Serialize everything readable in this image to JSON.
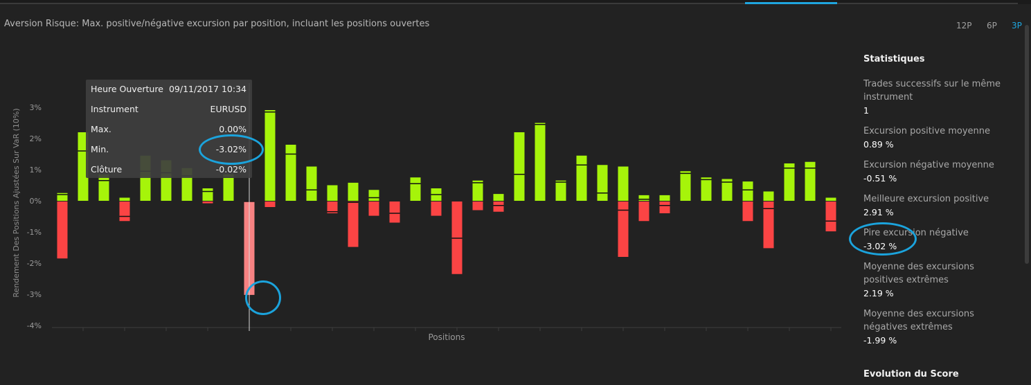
{
  "title": "Aversion Risque: Max. positive/négative excursion par position, incluant les positions ouvertes",
  "periods": [
    "12P",
    "6P",
    "3P"
  ],
  "active_period": "3P",
  "colors": {
    "positive": "#a6f40a",
    "negative": "#fb4444",
    "highlight": "#f78282",
    "accent": "#1fa6df"
  },
  "tooltip": {
    "rows": [
      {
        "label": "Heure Ouverture",
        "value": "09/11/2017 10:34"
      },
      {
        "label": "Instrument",
        "value": "EURUSD"
      },
      {
        "label": "Max.",
        "value": "0.00%"
      },
      {
        "label": "Min.",
        "value": "-3.02%"
      },
      {
        "label": "Clôture",
        "value": "-0.02%"
      }
    ]
  },
  "stats": {
    "title": "Statistiques",
    "items": [
      {
        "label": "Trades successifs sur le même instrument",
        "value": "1"
      },
      {
        "label": "Excursion positive moyenne",
        "value": "0.89 %"
      },
      {
        "label": "Excursion négative moyenne",
        "value": "-0.51 %"
      },
      {
        "label": "Meilleure excursion positive",
        "value": "2.91 %"
      },
      {
        "label": "Pire excursion négative",
        "value": "-3.02 %"
      },
      {
        "label": "Moyenne des excursions positives extrêmes",
        "value": "2.19 %"
      },
      {
        "label": "Moyenne des excursions négatives extrêmes",
        "value": "-1.99 %"
      }
    ],
    "score_title": "Evolution du Score"
  },
  "chart_data": {
    "type": "bar",
    "ylabel": "Rendement Des Positions Ajustées Sur VaR (10%)",
    "xlabel": "Positions",
    "ylim": [
      -4,
      3
    ],
    "yticks": [
      "3%",
      "2%",
      "1%",
      "0%",
      "-1%",
      "-2%",
      "-3%",
      "-4%"
    ],
    "highlighted_index": 9,
    "positions": [
      {
        "max": 0.25,
        "min": -1.85,
        "close": 0.2
      },
      {
        "max": 2.2,
        "min": 0.0,
        "close": 1.6
      },
      {
        "max": 0.85,
        "min": 0.0,
        "close": 0.65
      },
      {
        "max": 0.1,
        "min": -0.65,
        "close": -0.5
      },
      {
        "max": 1.45,
        "min": 0.0,
        "close": 0.95
      },
      {
        "max": 1.3,
        "min": 0.0,
        "close": 0.9
      },
      {
        "max": 1.05,
        "min": 0.0,
        "close": 0.8
      },
      {
        "max": 0.4,
        "min": -0.08,
        "close": 0.3
      },
      {
        "max": 0.85,
        "min": 0.0,
        "close": 0.75
      },
      {
        "max": 0.0,
        "min": -3.02,
        "close": -0.02
      },
      {
        "max": 2.91,
        "min": -0.2,
        "close": 2.85
      },
      {
        "max": 1.8,
        "min": 0.0,
        "close": 1.5
      },
      {
        "max": 1.1,
        "min": 0.0,
        "close": 0.35
      },
      {
        "max": 0.5,
        "min": -0.4,
        "close": -0.35
      },
      {
        "max": 0.58,
        "min": -1.48,
        "close": -0.05
      },
      {
        "max": 0.35,
        "min": -0.48,
        "close": 0.1
      },
      {
        "max": 0.0,
        "min": -0.7,
        "close": -0.4
      },
      {
        "max": 0.75,
        "min": 0.0,
        "close": 0.55
      },
      {
        "max": 0.4,
        "min": -0.48,
        "close": 0.2
      },
      {
        "max": 0.0,
        "min": -2.35,
        "close": -1.2
      },
      {
        "max": 0.65,
        "min": -0.3,
        "close": 0.58
      },
      {
        "max": 0.22,
        "min": -0.35,
        "close": -0.15
      },
      {
        "max": 2.2,
        "min": -0.02,
        "close": 0.85
      },
      {
        "max": 2.5,
        "min": 0.0,
        "close": 2.45
      },
      {
        "max": 0.65,
        "min": 0.0,
        "close": 0.6
      },
      {
        "max": 1.45,
        "min": 0.0,
        "close": 1.15
      },
      {
        "max": 1.15,
        "min": 0.0,
        "close": 0.25
      },
      {
        "max": 1.1,
        "min": -1.8,
        "close": -0.3
      },
      {
        "max": 0.18,
        "min": -0.65,
        "close": 0.05
      },
      {
        "max": 0.18,
        "min": -0.4,
        "close": -0.15
      },
      {
        "max": 0.95,
        "min": 0.0,
        "close": 0.88
      },
      {
        "max": 0.75,
        "min": 0.0,
        "close": 0.68
      },
      {
        "max": 0.7,
        "min": 0.0,
        "close": 0.6
      },
      {
        "max": 0.62,
        "min": -0.65,
        "close": 0.35
      },
      {
        "max": 0.3,
        "min": -1.52,
        "close": -0.25
      },
      {
        "max": 1.2,
        "min": 0.0,
        "close": 1.05
      },
      {
        "max": 1.25,
        "min": 0.0,
        "close": 1.05
      },
      {
        "max": 0.1,
        "min": -0.98,
        "close": -0.65
      }
    ]
  }
}
